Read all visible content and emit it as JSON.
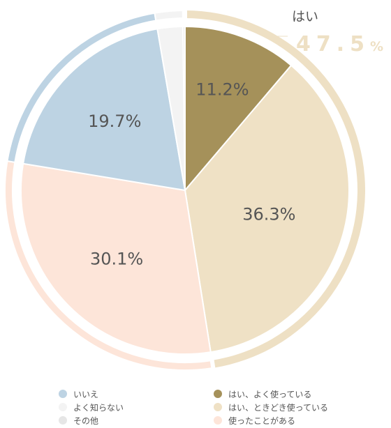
{
  "chart_data": {
    "type": "pie",
    "categories": [
      "はい、よく使っている",
      "はい、ときどき使っている",
      "使ったことがある",
      "いいえ",
      "よく知らない",
      "その他"
    ],
    "values": [
      11.2,
      36.3,
      30.1,
      19.7,
      2.5,
      0.2
    ],
    "data_labels": [
      "11.2%",
      "36.3%",
      "30.1%",
      "19.7%",
      "",
      ""
    ],
    "colors": [
      "#a5915a",
      "#efe1c5",
      "#fde5d9",
      "#bdd3e3",
      "#f3f3f3",
      "#e6e6e6"
    ],
    "group_ring": {
      "label": "はい",
      "value_text": "47.5",
      "unit": "%",
      "value": 47.5,
      "color": "#eee0c4"
    },
    "legend": {
      "left": [
        {
          "label": "いいえ",
          "color": "#bdd3e3"
        },
        {
          "label": "よく知らない",
          "color": "#f3f3f3"
        },
        {
          "label": "その他",
          "color": "#e6e6e6"
        }
      ],
      "right": [
        {
          "label": "はい、よく使っている",
          "color": "#a5915a"
        },
        {
          "label": "はい、ときどき使っている",
          "color": "#efe1c5"
        },
        {
          "label": "使ったことがある",
          "color": "#fde5d9"
        }
      ]
    }
  }
}
